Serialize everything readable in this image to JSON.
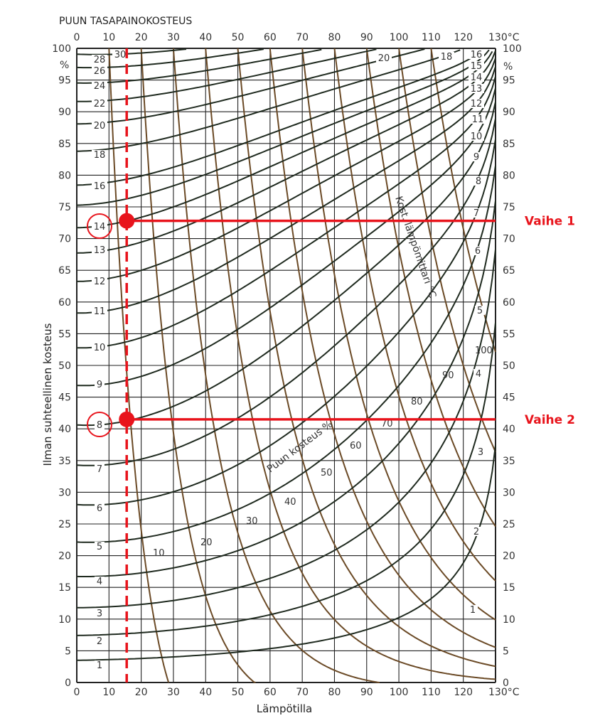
{
  "chart_data": {
    "type": "line",
    "title": "PUUN TASAPAINOKOSTEUS",
    "xlabel": "Lämpötilla",
    "ylabel": "Ilman suhteellinen kosteus",
    "xlim": [
      0,
      130
    ],
    "ylim": [
      0,
      100
    ],
    "x_unit": "°C",
    "y_unit": "%",
    "x_ticks": [
      "0",
      "10",
      "20",
      "30",
      "40",
      "50",
      "60",
      "70",
      "80",
      "90",
      "100",
      "110",
      "120",
      "130°C"
    ],
    "y_ticks": [
      "0",
      "5",
      "10",
      "15",
      "20",
      "25",
      "30",
      "35",
      "40",
      "45",
      "50",
      "55",
      "60",
      "65",
      "70",
      "75",
      "80",
      "85",
      "90",
      "95",
      "100"
    ],
    "grid": true,
    "emc_series_label": "Puun kosteus %",
    "emc_curves": [
      1,
      2,
      3,
      4,
      5,
      6,
      7,
      8,
      9,
      10,
      11,
      12,
      13,
      14,
      15,
      16,
      18,
      20,
      22,
      24,
      26,
      28,
      30
    ],
    "emc_left_labels": [
      "1",
      "2",
      "3",
      "4",
      "5",
      "6",
      "7",
      "8",
      "9",
      "10",
      "11",
      "12",
      "13",
      "14",
      "16",
      "18",
      "20",
      "22",
      "24",
      "26",
      "28",
      "30"
    ],
    "emc_right_labels": [
      "1",
      "2",
      "3",
      "4",
      "5",
      "6",
      "7",
      "8",
      "9",
      "10",
      "11",
      "12",
      "13",
      "14",
      "15",
      "16",
      "18",
      "20"
    ],
    "wetbulb_series_label": "Kost. lämpömittari °C",
    "wetbulb_curves": [
      10,
      20,
      30,
      40,
      50,
      60,
      70,
      80,
      90,
      100,
      110
    ],
    "wetbulb_labels": [
      "10",
      "20",
      "30",
      "40",
      "50",
      "60",
      "70",
      "80",
      "90",
      "100"
    ],
    "colors": {
      "emc": "#1f2a1f",
      "wetbulb": "#6b4a26",
      "grid": "#222222",
      "annotation": "#e8141c"
    },
    "annotations": {
      "temperature": 15.5,
      "steps": [
        {
          "label": "Vaihe 1",
          "rh": 72.8,
          "emc": "14"
        },
        {
          "label": "Vaihe 2",
          "rh": 41.5,
          "emc": "8"
        }
      ]
    }
  }
}
